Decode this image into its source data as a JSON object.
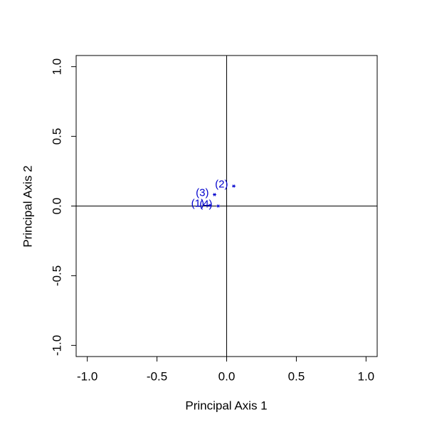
{
  "chart_data": {
    "type": "scatter",
    "x_label": "Principal Axis 1",
    "y_label": "Principal Axis 2",
    "labels": [
      "(1)",
      "(2)",
      "(3)",
      "(4)"
    ],
    "x": [
      -0.12,
      0.051,
      -0.087,
      -0.061
    ],
    "y": [
      0.005,
      0.143,
      0.082,
      0.0
    ],
    "color": "#0000cd",
    "xlim": [
      -1.08,
      1.08
    ],
    "ylim": [
      -1.08,
      1.08
    ],
    "xticks": [
      {
        "value": -1,
        "label": "-1.0"
      },
      -0.5,
      {
        "value": 0,
        "label": "0.0"
      },
      0.5,
      {
        "value": 1,
        "label": "1.0"
      }
    ],
    "yticks": [
      {
        "value": -1,
        "label": "-1.0"
      },
      -0.5,
      {
        "value": 0,
        "label": "0.0"
      },
      0.5,
      {
        "value": 1,
        "label": "1.0"
      }
    ],
    "zero_lines": true
  }
}
